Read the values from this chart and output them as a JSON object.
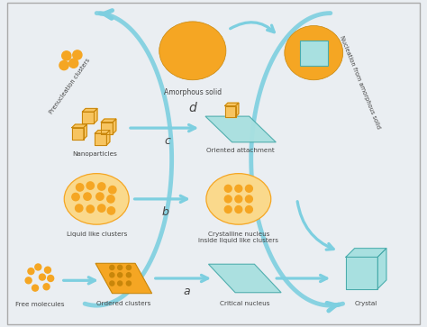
{
  "bg_color": "#eaeef2",
  "border_color": "#aaaaaa",
  "gold": "#F5A623",
  "gold_dark": "#C8860A",
  "gold_light": "#F7C460",
  "gold_pale": "#FAD98C",
  "teal": "#6ECFCF",
  "teal_pale": "#A8E0E0",
  "teal_dark": "#4AABAB",
  "arrow_color": "#7DCFE0",
  "text_color": "#444444",
  "figsize": [
    4.74,
    3.63
  ],
  "dpi": 100,
  "labels": {
    "free_molecules": "Free molecules",
    "ordered_clusters": "Ordered clusters",
    "critical_nucleus": "Critical nucleus",
    "crystal": "Crystal",
    "liquid_like": "Liquid like clusters",
    "crystalline_nucleus": "Crystalline nucleus\ninside liquid like clusters",
    "nanoparticles": "Nanoparticles",
    "oriented_attachment": "Oriented attachment",
    "amorphous_solid": "Amorphous solid",
    "nucleation_from": "Nucleation from amorphous solid",
    "prenucleation": "Prenucleation clusters",
    "pathway_a": "a",
    "pathway_b": "b",
    "pathway_c": "c",
    "pathway_d": "d"
  }
}
